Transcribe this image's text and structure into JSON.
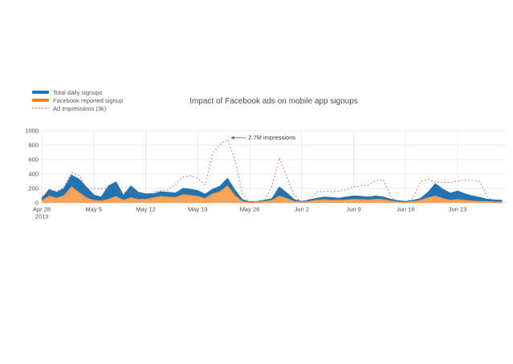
{
  "page": {
    "background": "#ffffff"
  },
  "chart_data": {
    "type": "area",
    "title": "Impact of Facebook ads on mobile app signups",
    "legend_position": "top-left",
    "grid": true,
    "ylim": [
      0,
      1000
    ],
    "yticks": [
      0,
      200,
      400,
      600,
      800,
      1000
    ],
    "xticks": [
      {
        "day": 0,
        "label": "Apr 28",
        "sublabel": "2013"
      },
      {
        "day": 7,
        "label": "May 5"
      },
      {
        "day": 14,
        "label": "May 12"
      },
      {
        "day": 21,
        "label": "May 19"
      },
      {
        "day": 28,
        "label": "May 26"
      },
      {
        "day": 35,
        "label": "Jun 2"
      },
      {
        "day": 42,
        "label": "Jun 9"
      },
      {
        "day": 49,
        "label": "Jun 16"
      },
      {
        "day": 56,
        "label": "Jun 23"
      }
    ],
    "annotation": {
      "text": "2.7M impressions",
      "day": 25,
      "value": 880
    },
    "x": [
      "Apr 28",
      "Apr 29",
      "Apr 30",
      "May 1",
      "May 2",
      "May 3",
      "May 4",
      "May 5",
      "May 6",
      "May 7",
      "May 8",
      "May 9",
      "May 10",
      "May 11",
      "May 12",
      "May 13",
      "May 14",
      "May 15",
      "May 16",
      "May 17",
      "May 18",
      "May 19",
      "May 20",
      "May 21",
      "May 22",
      "May 23",
      "May 24",
      "May 25",
      "May 26",
      "May 27",
      "May 28",
      "May 29",
      "May 30",
      "May 31",
      "Jun 1",
      "Jun 2",
      "Jun 3",
      "Jun 4",
      "Jun 5",
      "Jun 6",
      "Jun 7",
      "Jun 8",
      "Jun 9",
      "Jun 10",
      "Jun 11",
      "Jun 12",
      "Jun 13",
      "Jun 14",
      "Jun 15",
      "Jun 16",
      "Jun 17",
      "Jun 18",
      "Jun 19",
      "Jun 20",
      "Jun 21",
      "Jun 22",
      "Jun 23",
      "Jun 24",
      "Jun 25",
      "Jun 26",
      "Jun 27",
      "Jun 28",
      "Jun 29"
    ],
    "series": [
      {
        "id": "total-daily-signups",
        "name": "Total daily signups",
        "type": "area",
        "color": "#1f77b4",
        "fill": "#2173b2",
        "line_color": "#1f77b4",
        "values": [
          60,
          185,
          145,
          200,
          385,
          330,
          220,
          110,
          80,
          235,
          290,
          105,
          235,
          145,
          125,
          125,
          155,
          145,
          135,
          200,
          190,
          170,
          120,
          190,
          230,
          340,
          180,
          45,
          15,
          20,
          35,
          60,
          220,
          135,
          45,
          20,
          40,
          65,
          80,
          75,
          65,
          80,
          95,
          90,
          80,
          95,
          80,
          50,
          30,
          20,
          35,
          60,
          145,
          265,
          190,
          135,
          165,
          125,
          95,
          75,
          50,
          40,
          35
        ]
      },
      {
        "id": "facebook-reported-signup",
        "name": "Facebook reported signup",
        "type": "area",
        "color": "#ff7f0e",
        "fill": "#f7a35c",
        "line_color": "#fd8f3d",
        "values": [
          30,
          95,
          65,
          100,
          220,
          145,
          70,
          35,
          25,
          50,
          90,
          35,
          70,
          45,
          50,
          70,
          90,
          80,
          75,
          115,
          105,
          90,
          60,
          125,
          155,
          235,
          105,
          20,
          5,
          15,
          20,
          35,
          95,
          60,
          20,
          15,
          20,
          35,
          45,
          35,
          35,
          40,
          50,
          45,
          40,
          50,
          45,
          25,
          15,
          10,
          20,
          35,
          70,
          95,
          60,
          35,
          45,
          35,
          25,
          20,
          18,
          15,
          10
        ]
      },
      {
        "id": "ad-impressions",
        "name": "Ad impressions (3k)",
        "type": "line",
        "dash": "dot",
        "color": "#e05050",
        "legend_color": "#f2b0b0",
        "values": [
          90,
          150,
          165,
          220,
          425,
          385,
          200,
          200,
          190,
          200,
          220,
          145,
          165,
          125,
          105,
          145,
          170,
          180,
          255,
          355,
          375,
          340,
          250,
          680,
          810,
          880,
          605,
          125,
          5,
          15,
          35,
          235,
          625,
          350,
          105,
          5,
          45,
          145,
          165,
          155,
          165,
          180,
          220,
          235,
          245,
          310,
          320,
          90,
          15,
          5,
          70,
          290,
          330,
          280,
          290,
          280,
          300,
          320,
          310,
          290,
          90,
          5,
          0
        ]
      }
    ]
  }
}
